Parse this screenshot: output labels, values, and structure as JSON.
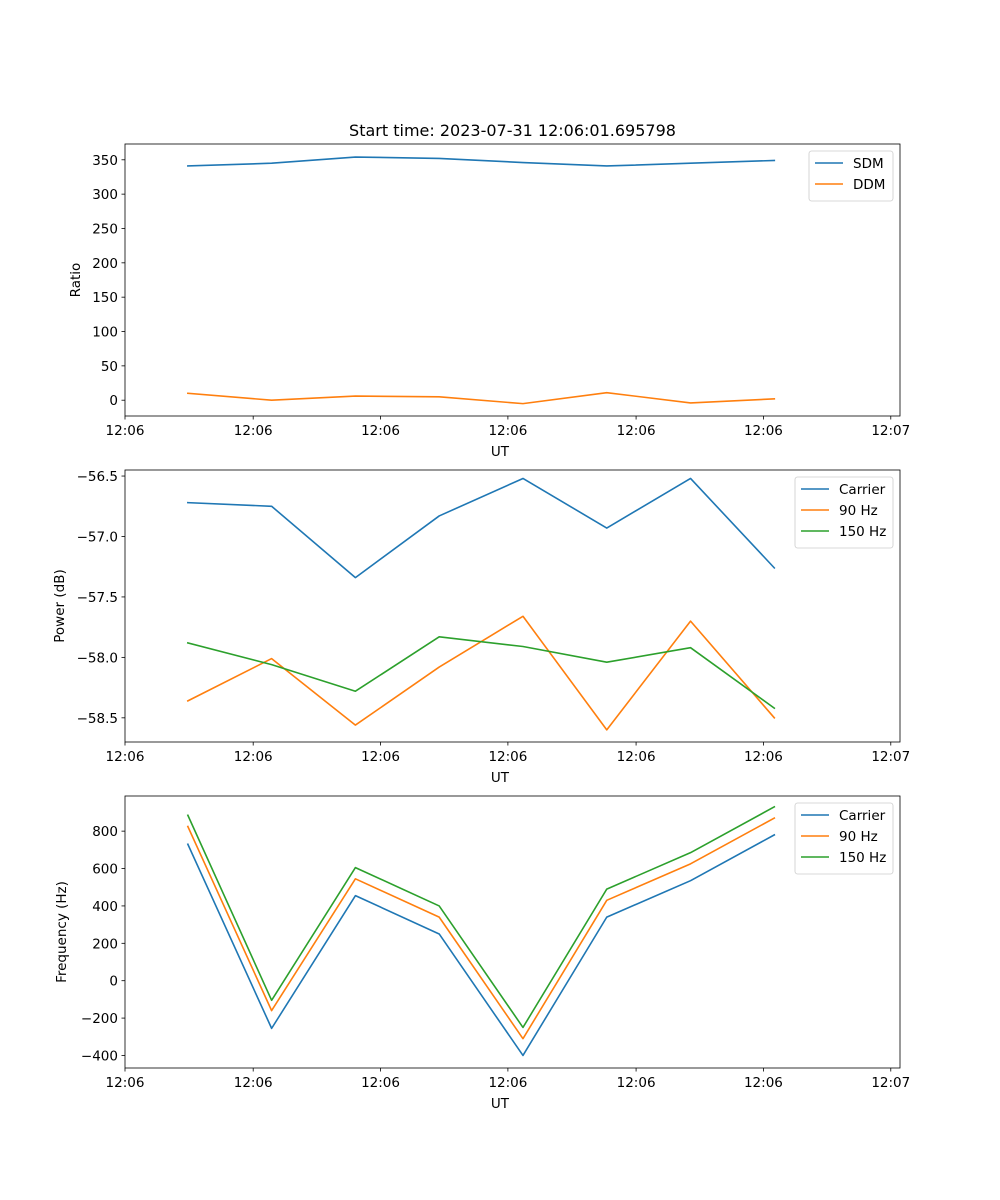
{
  "figure": {
    "title": "Start time: 2023-07-31 12:06:01.695798"
  },
  "colors": {
    "blue": "#1f77b4",
    "orange": "#ff7f0e",
    "green": "#2ca02c",
    "axes": "#000000",
    "legend_border": "#cccccc"
  },
  "chart_data": [
    {
      "type": "line",
      "title": "Start time: 2023-07-31 12:06:01.695798",
      "xlabel": "UT",
      "ylabel": "Ratio",
      "x": [
        0,
        1,
        2,
        3,
        4,
        5,
        6,
        7
      ],
      "xlim": [
        -0.75,
        8.5
      ],
      "ylim": [
        -23,
        373
      ],
      "x_ticks": [
        -0.75,
        0.78,
        2.3,
        3.82,
        5.35,
        6.87,
        8.39
      ],
      "x_tick_labels": [
        "12:06",
        "12:06",
        "12:06",
        "12:06",
        "12:06",
        "12:06",
        "12:07"
      ],
      "y_ticks": [
        0,
        50,
        100,
        150,
        200,
        250,
        300,
        350
      ],
      "y_tick_labels": [
        "0",
        "50",
        "100",
        "150",
        "200",
        "250",
        "300",
        "350"
      ],
      "legend_position": "top-right",
      "series": [
        {
          "name": "SDM",
          "color_key": "blue",
          "values": [
            341,
            345,
            354,
            352,
            346,
            341,
            345,
            349
          ]
        },
        {
          "name": "DDM",
          "color_key": "orange",
          "values": [
            10,
            0,
            6,
            5,
            -5,
            11,
            -4,
            2
          ]
        }
      ]
    },
    {
      "type": "line",
      "title": "",
      "xlabel": "UT",
      "ylabel": "Power (dB)",
      "x": [
        0,
        1,
        2,
        3,
        4,
        5,
        6,
        7
      ],
      "xlim": [
        -0.75,
        8.5
      ],
      "ylim": [
        -58.7,
        -56.45
      ],
      "x_ticks": [
        -0.75,
        0.78,
        2.3,
        3.82,
        5.35,
        6.87,
        8.39
      ],
      "x_tick_labels": [
        "12:06",
        "12:06",
        "12:06",
        "12:06",
        "12:06",
        "12:06",
        "12:07"
      ],
      "y_ticks": [
        -56.5,
        -57.0,
        -57.5,
        -58.0,
        -58.5
      ],
      "y_tick_labels": [
        "−56.5",
        "−57.0",
        "−57.5",
        "−58.0",
        "−58.5"
      ],
      "legend_position": "top-right",
      "series": [
        {
          "name": "Carrier",
          "color_key": "blue",
          "values": [
            -56.72,
            -56.75,
            -57.34,
            -56.83,
            -56.52,
            -56.93,
            -56.52,
            -57.26
          ]
        },
        {
          "name": "90 Hz",
          "color_key": "orange",
          "values": [
            -58.36,
            -58.01,
            -58.56,
            -58.08,
            -57.66,
            -58.6,
            -57.7,
            -58.5
          ]
        },
        {
          "name": "150 Hz",
          "color_key": "green",
          "values": [
            -57.88,
            -58.06,
            -58.28,
            -57.83,
            -57.91,
            -58.04,
            -57.92,
            -58.42
          ]
        }
      ]
    },
    {
      "type": "line",
      "title": "",
      "xlabel": "UT",
      "ylabel": "Frequency (Hz)",
      "x": [
        0,
        1,
        2,
        3,
        4,
        5,
        6,
        7
      ],
      "xlim": [
        -0.75,
        8.5
      ],
      "ylim": [
        -467,
        988
      ],
      "x_ticks": [
        -0.75,
        0.78,
        2.3,
        3.82,
        5.35,
        6.87,
        8.39
      ],
      "x_tick_labels": [
        "12:06",
        "12:06",
        "12:06",
        "12:06",
        "12:06",
        "12:06",
        "12:07"
      ],
      "y_ticks": [
        -400,
        -200,
        0,
        200,
        400,
        600,
        800
      ],
      "y_tick_labels": [
        "−400",
        "−200",
        "0",
        "200",
        "400",
        "600",
        "800"
      ],
      "legend_position": "top-right",
      "series": [
        {
          "name": "Carrier",
          "color_key": "blue",
          "values": [
            730,
            -255,
            455,
            250,
            -400,
            340,
            535,
            780
          ]
        },
        {
          "name": "90 Hz",
          "color_key": "orange",
          "values": [
            825,
            -160,
            545,
            340,
            -310,
            430,
            625,
            870
          ]
        },
        {
          "name": "150 Hz",
          "color_key": "green",
          "values": [
            885,
            -105,
            605,
            400,
            -250,
            490,
            685,
            930
          ]
        }
      ]
    }
  ]
}
